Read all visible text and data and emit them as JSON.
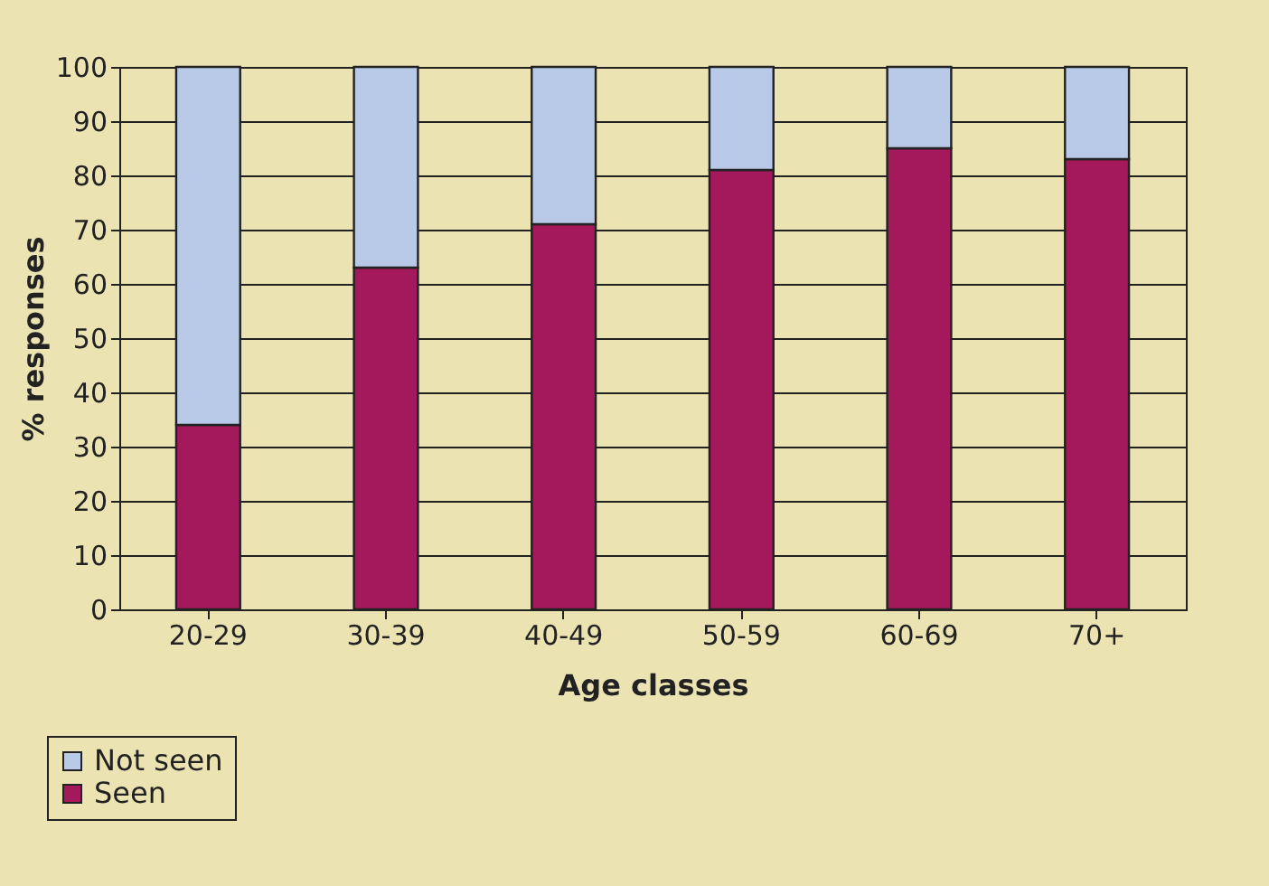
{
  "chart_data": {
    "type": "bar",
    "stacked": true,
    "xlabel": "Age classes",
    "ylabel": "% responses",
    "categories": [
      "20-29",
      "30-39",
      "40-49",
      "50-59",
      "60-69",
      "70+"
    ],
    "series": [
      {
        "name": "Seen",
        "color": "#a3195b",
        "values": [
          34,
          63,
          71,
          81,
          85,
          83
        ]
      },
      {
        "name": "Not seen",
        "color": "#b9c9e8",
        "values": [
          66,
          37,
          29,
          19,
          15,
          17
        ]
      }
    ],
    "ylim": [
      0,
      100
    ],
    "yticks": [
      0,
      10,
      20,
      30,
      40,
      50,
      60,
      70,
      80,
      90,
      100
    ],
    "grid": "y",
    "legend": "bottom left"
  }
}
